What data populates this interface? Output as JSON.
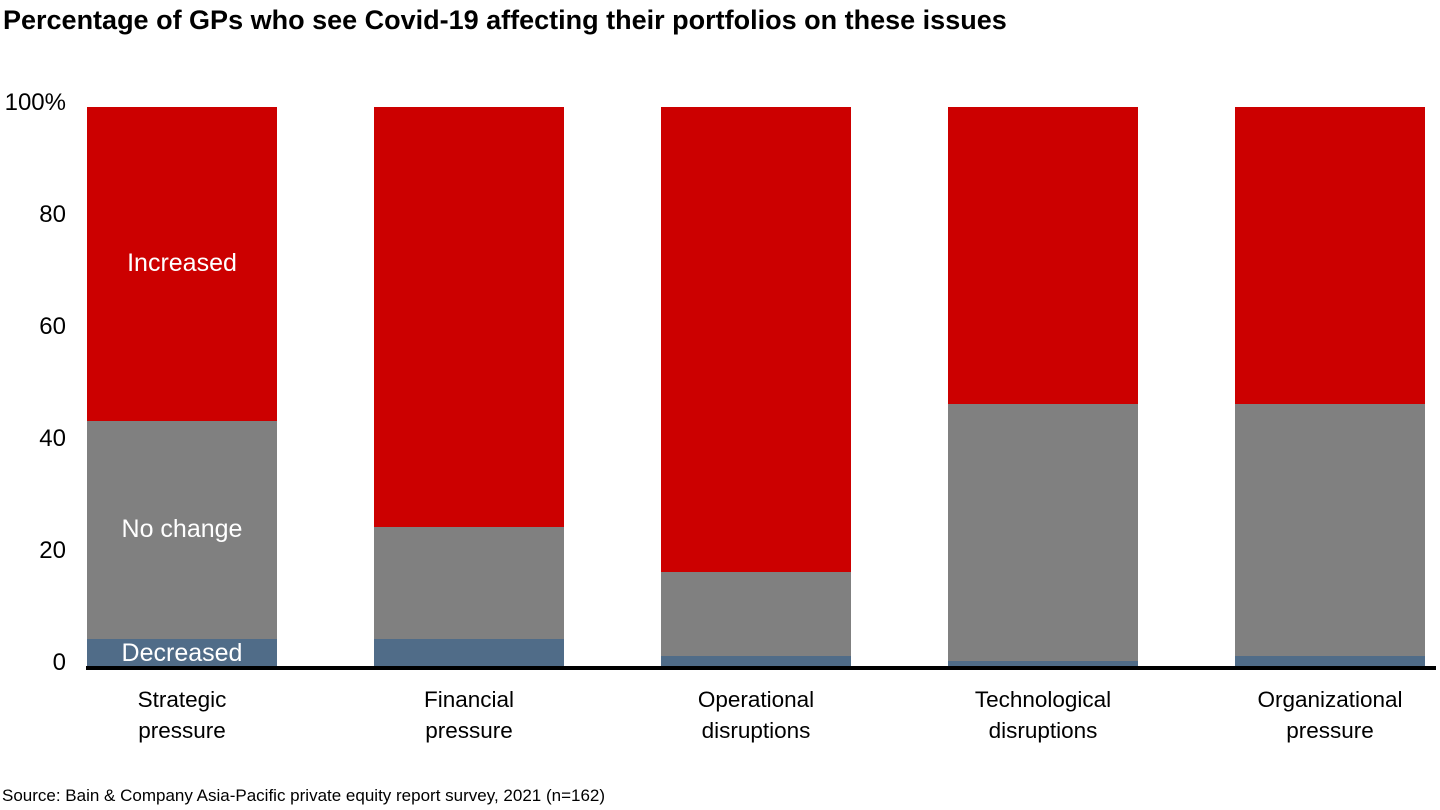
{
  "title": "Percentage of GPs who see Covid-19 affecting their portfolios on these issues",
  "source": "Source: Bain & Company Asia-Pacific private equity report survey, 2021 (n=162)",
  "y_axis": {
    "ticks": [
      {
        "value": 0,
        "label": "0"
      },
      {
        "value": 20,
        "label": "20"
      },
      {
        "value": 40,
        "label": "40"
      },
      {
        "value": 60,
        "label": "60"
      },
      {
        "value": 80,
        "label": "80"
      },
      {
        "value": 100,
        "label": "100%"
      }
    ]
  },
  "chart_data": {
    "type": "bar",
    "stacked": true,
    "unit": "percent",
    "title": "Percentage of GPs who see Covid-19 affecting their portfolios on these issues",
    "xlabel": "",
    "ylabel": "",
    "ylim": [
      0,
      100
    ],
    "grid": false,
    "legend_position": "labels-inside-first-bar",
    "categories": [
      "Strategic pressure",
      "Financial pressure",
      "Operational disruptions",
      "Technological disruptions",
      "Organizational pressure"
    ],
    "category_lines": [
      [
        "Strategic",
        "pressure"
      ],
      [
        "Financial",
        "pressure"
      ],
      [
        "Operational",
        "disruptions"
      ],
      [
        "Technological",
        "disruptions"
      ],
      [
        "Organizational",
        "pressure"
      ]
    ],
    "series": [
      {
        "name": "Decreased",
        "color": "#506C88",
        "values": [
          5,
          5,
          2,
          1,
          2
        ]
      },
      {
        "name": "No change",
        "color": "#808080",
        "values": [
          39,
          20,
          15,
          46,
          45
        ]
      },
      {
        "name": "Increased",
        "color": "#CC0000",
        "values": [
          56,
          75,
          83,
          53,
          53
        ]
      }
    ]
  }
}
